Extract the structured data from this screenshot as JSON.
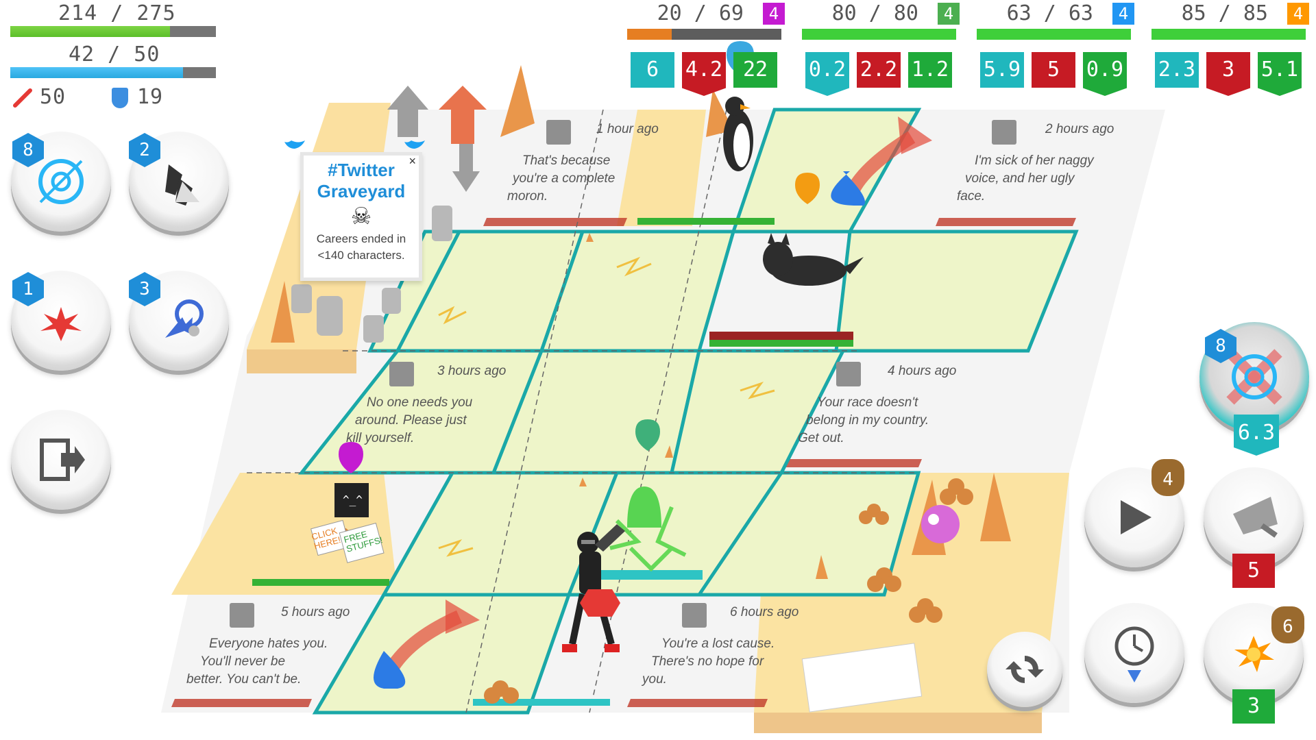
{
  "player": {
    "hp_text": "214 / 275",
    "hp_fraction": 0.778,
    "mana_text": "42 / 50",
    "mana_fraction": 0.84,
    "attack": "50",
    "defense": "19"
  },
  "enemies": [
    {
      "hp_text": "20 / 69",
      "level": "4",
      "level_color": "#c41bd1",
      "hp_fraction": 0.29,
      "hp_color": "#e67e22",
      "stats": [
        "6",
        "4.2",
        "22"
      ]
    },
    {
      "hp_text": "80 / 80",
      "level": "4",
      "level_color": "#4caf50",
      "hp_fraction": 1.0,
      "hp_color": "#3fcf3a",
      "stats": [
        "0.2",
        "2.2",
        "1.2"
      ]
    },
    {
      "hp_text": "63 / 63",
      "level": "4",
      "level_color": "#2196f3",
      "hp_fraction": 1.0,
      "hp_color": "#3fcf3a",
      "stats": [
        "5.9",
        "5",
        "0.9"
      ]
    },
    {
      "hp_text": "85 / 85",
      "level": "4",
      "level_color": "#ff9800",
      "hp_fraction": 1.0,
      "hp_color": "#3fcf3a",
      "stats": [
        "2.3",
        "3",
        "5.1"
      ]
    }
  ],
  "skills": {
    "target_level": "8",
    "boots_level": "2",
    "blast_level": "1",
    "dash_level": "3"
  },
  "sign": {
    "title1": "#Twitter",
    "title2": "Graveyard",
    "caption1": "Careers ended in",
    "caption2": "<140 characters."
  },
  "tweets": [
    {
      "time": "1 hour ago",
      "lines": [
        "That's because",
        "you're a complete",
        "moron."
      ]
    },
    {
      "time": "2 hours ago",
      "lines": [
        "I'm sick of her naggy",
        "voice, and her ugly",
        "face."
      ]
    },
    {
      "time": "3 hours ago",
      "lines": [
        "No one needs you",
        "around. Please just",
        "kill yourself."
      ]
    },
    {
      "time": "4 hours ago",
      "lines": [
        "Your race doesn't",
        "belong in my country.",
        "Get out."
      ]
    },
    {
      "time": "5 hours ago",
      "lines": [
        "Everyone hates you.",
        "You'll never be",
        "better. You can't be."
      ]
    },
    {
      "time": "6 hours ago",
      "lines": [
        "You're a lost cause.",
        "There's no hope for",
        "you."
      ]
    }
  ],
  "spam_sign": {
    "left": "CLICK HERE!",
    "right": "FREE STUFFS!"
  },
  "right_panel": {
    "target_level": "8",
    "target_value": "6.3",
    "play_cost": "4",
    "shield_cost": "5",
    "explode_bag": "6",
    "explode_cost": "3"
  },
  "colors": {
    "teal": "#20b7bd",
    "red": "#c61b24",
    "green": "#1faa3a",
    "tile_green": "#eef5c9",
    "tile_border": "#1aa8a8",
    "sand": "#fbe3a2"
  }
}
